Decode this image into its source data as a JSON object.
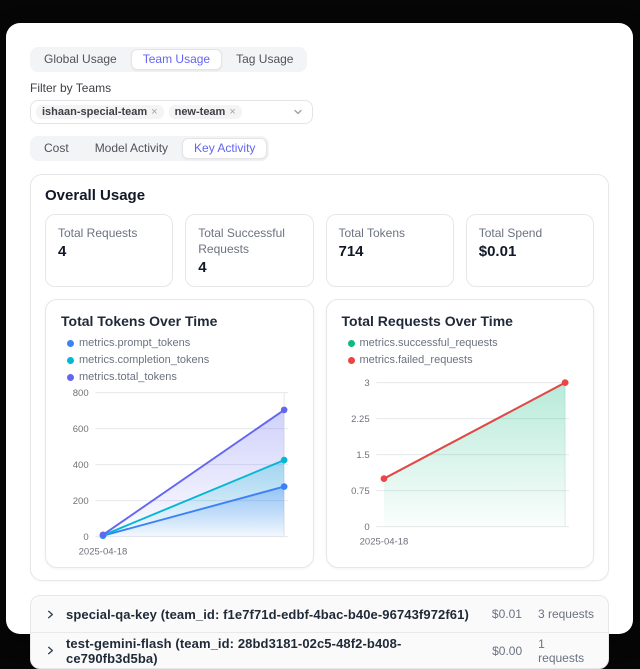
{
  "top_tabs": {
    "items": [
      {
        "label": "Global Usage",
        "active": false
      },
      {
        "label": "Team Usage",
        "active": true
      },
      {
        "label": "Tag Usage",
        "active": false
      }
    ]
  },
  "filter": {
    "label": "Filter by Teams",
    "selected_teams": [
      {
        "name": "ishaan-special-team",
        "remove_glyph": "×"
      },
      {
        "name": "new-team",
        "remove_glyph": "×"
      }
    ]
  },
  "activity_tabs": {
    "items": [
      {
        "label": "Cost",
        "active": false
      },
      {
        "label": "Model Activity",
        "active": false
      },
      {
        "label": "Key Activity",
        "active": true
      }
    ]
  },
  "overall_usage": {
    "title": "Overall Usage",
    "stats": [
      {
        "label": "Total Requests",
        "value": "4"
      },
      {
        "label": "Total Successful Requests",
        "value": "4"
      },
      {
        "label": "Total Tokens",
        "value": "714"
      },
      {
        "label": "Total Spend",
        "value": "$0.01"
      }
    ]
  },
  "chart_data": [
    {
      "type": "line",
      "title": "Total Tokens Over Time",
      "x_tick_labels": [
        "2025-04-18"
      ],
      "x_points": 2,
      "series": [
        {
          "name": "metrics.prompt_tokens",
          "color": "#3b82f6",
          "values": [
            5,
            278
          ],
          "area": true,
          "dots": true
        },
        {
          "name": "metrics.completion_tokens",
          "color": "#06b6d4",
          "values": [
            7,
            425
          ],
          "area": true,
          "dots": true
        },
        {
          "name": "metrics.total_tokens",
          "color": "#6366f1",
          "values": [
            10,
            704
          ],
          "area": true,
          "dots": true
        }
      ],
      "ylim": [
        0,
        800
      ],
      "yticks": [
        0,
        200,
        400,
        600,
        800
      ],
      "grid": "horizontal",
      "legend_position": "top"
    },
    {
      "type": "line",
      "title": "Total Requests Over Time",
      "x_tick_labels": [
        "2025-04-18"
      ],
      "x_points": 2,
      "series": [
        {
          "name": "metrics.successful_requests",
          "color": "#10b981",
          "values": [
            1,
            3
          ],
          "area": true,
          "dots": false
        },
        {
          "name": "metrics.failed_requests",
          "color": "#ef4444",
          "values": [
            1,
            3
          ],
          "area": false,
          "dots": true
        }
      ],
      "ylim": [
        0,
        3
      ],
      "yticks": [
        0,
        0.75,
        1.5,
        2.25,
        3
      ],
      "grid": "horizontal",
      "legend_position": "top"
    }
  ],
  "key_rows": [
    {
      "name": "special-qa-key (team_id: f1e7f71d-edbf-4bac-b40e-96743f972f61)",
      "spend": "$0.01",
      "requests": "3 requests"
    },
    {
      "name": "test-gemini-flash (team_id: 28bd3181-02c5-48f2-b408-ce790fb3d5ba)",
      "spend": "$0.00",
      "requests": "1 requests"
    }
  ],
  "colors": {
    "accent": "#6366f1",
    "border": "#e5e7eb",
    "grid": "#e5e7eb",
    "tick_text": "#71717a"
  }
}
